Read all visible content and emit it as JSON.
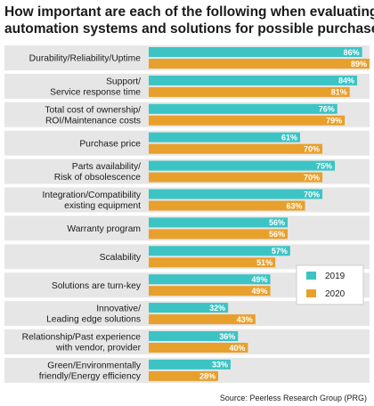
{
  "chart_data": {
    "type": "bar",
    "orientation": "horizontal",
    "title": "How important are each of the following when evaluating automation systems and solutions for possible purchase?",
    "source": "Source: Peerless Research Group (PRG)",
    "categories": [
      [
        "Durability/Reliability/Uptime"
      ],
      [
        "Support/",
        "Service response time"
      ],
      [
        "Total cost of ownership/",
        "ROI/Maintenance costs"
      ],
      [
        "Purchase price"
      ],
      [
        "Parts availability/",
        "Risk of obsolescence"
      ],
      [
        "Integration/Compatibility",
        "existing equipment"
      ],
      [
        "Warranty program"
      ],
      [
        "Scalability"
      ],
      [
        "Solutions are turn-key"
      ],
      [
        "Innovative/",
        "Leading edge solutions"
      ],
      [
        "Relationship/Past experience",
        "with vendor, provider"
      ],
      [
        "Green/Environmentally",
        "friendly/Energy efficiency"
      ]
    ],
    "series": [
      {
        "name": "2019",
        "color": "#3cc4c4",
        "values": [
          86,
          84,
          76,
          61,
          75,
          70,
          56,
          57,
          49,
          32,
          36,
          33
        ]
      },
      {
        "name": "2020",
        "color": "#e8a02c",
        "values": [
          89,
          81,
          79,
          70,
          70,
          63,
          56,
          51,
          49,
          43,
          40,
          28
        ]
      }
    ],
    "value_suffix": "%",
    "xlim": [
      0,
      89
    ],
    "grid": false,
    "legend_position": "right-middle",
    "band_color": "#e6e6e6"
  }
}
